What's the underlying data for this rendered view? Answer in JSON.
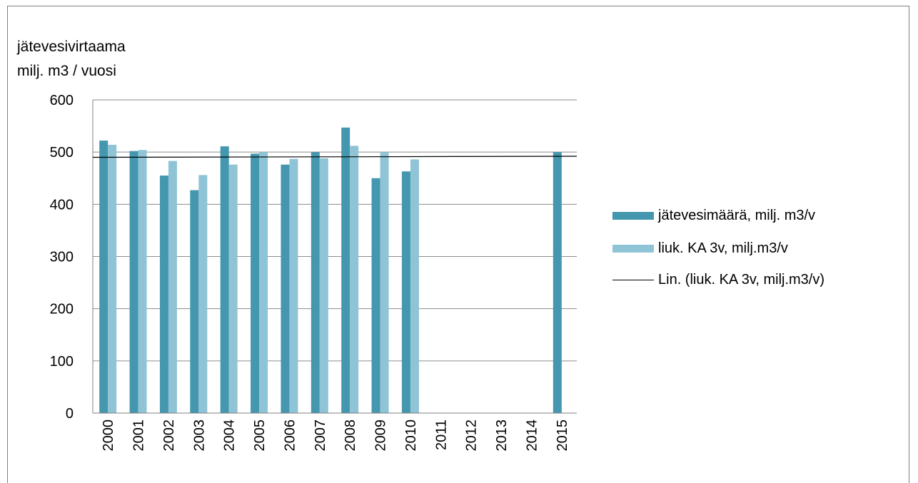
{
  "chart_data": {
    "type": "bar",
    "ylabel_line1": "jätevesivirtaama",
    "ylabel_line2": "milj. m3 / vuosi",
    "categories": [
      "2000",
      "2001",
      "2002",
      "2003",
      "2004",
      "2005",
      "2006",
      "2007",
      "2008",
      "2009",
      "2010",
      "2011",
      "2012",
      "2013",
      "2014",
      "2015"
    ],
    "series": [
      {
        "name": "jätevesimäärä,  milj. m3/v",
        "color": "#4497AE",
        "values": [
          522,
          502,
          455,
          427,
          511,
          497,
          476,
          500,
          547,
          450,
          463,
          null,
          null,
          null,
          null,
          500
        ]
      },
      {
        "name": "liuk. KA 3v, milj.m3/v",
        "color": "#8FC4D6",
        "values": [
          514,
          504,
          483,
          456,
          476,
          500,
          487,
          488,
          512,
          500,
          486,
          null,
          null,
          null,
          null,
          null
        ]
      }
    ],
    "trendline": {
      "name": "Lin. (liuk. KA 3v, milj.m3/v)",
      "color": "#000000",
      "start": 490,
      "end": 492
    },
    "yticks": [
      0,
      100,
      200,
      300,
      400,
      500,
      600
    ],
    "ylim": [
      0,
      600
    ],
    "grid": true,
    "legend_position": "right"
  }
}
